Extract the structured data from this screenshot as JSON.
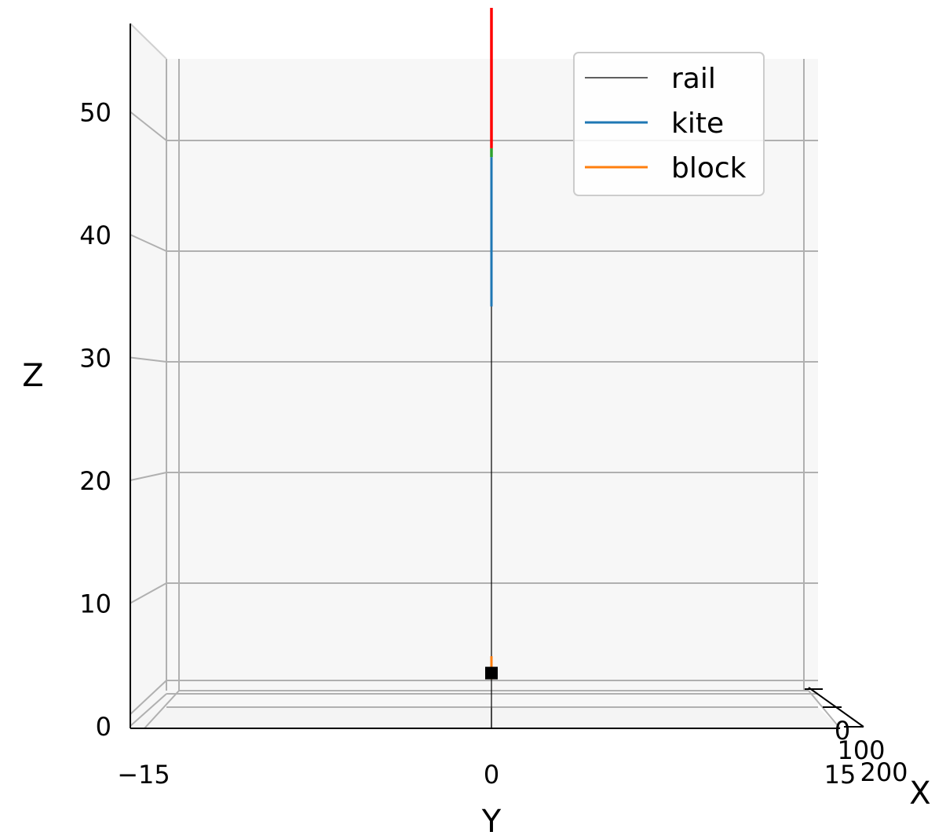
{
  "chart_data": {
    "type": "line",
    "projection": "3d",
    "xlabel": "X",
    "ylabel": "Y",
    "zlabel": "Z",
    "y_ticks": [
      "−15",
      "0",
      "15"
    ],
    "x_ticks": [
      "0",
      "100",
      "200"
    ],
    "z_ticks": [
      "0",
      "10",
      "20",
      "30",
      "40",
      "50"
    ],
    "zlim": [
      0,
      56
    ],
    "ylim": [
      -15,
      15
    ],
    "grid": true,
    "legend_position": "top-right",
    "series": [
      {
        "name": "rail",
        "color": "#000000",
        "points": [
          {
            "y": 0,
            "z": 0
          },
          {
            "y": 0,
            "z": 35
          }
        ]
      },
      {
        "name": "kite",
        "color": "#1f77b4",
        "points": [
          {
            "y": 0,
            "z": 35
          },
          {
            "y": 0,
            "z": 48.5
          }
        ]
      },
      {
        "name": "block",
        "color": "#ff7f0e",
        "points": [
          {
            "y": 0,
            "z": 1.3
          },
          {
            "y": 0,
            "z": 3.4
          }
        ]
      }
    ],
    "extra_segments": [
      {
        "color": "#2ca02c",
        "points": [
          {
            "y": 0,
            "z": 48.5
          },
          {
            "y": 0,
            "z": 49.3
          }
        ]
      },
      {
        "color": "#ff0000",
        "points": [
          {
            "y": 0,
            "z": 49.3
          },
          {
            "y": 0,
            "z": 58
          }
        ]
      }
    ],
    "markers": [
      {
        "shape": "square",
        "color": "#000000",
        "y": 0,
        "z": 2.3
      }
    ]
  }
}
